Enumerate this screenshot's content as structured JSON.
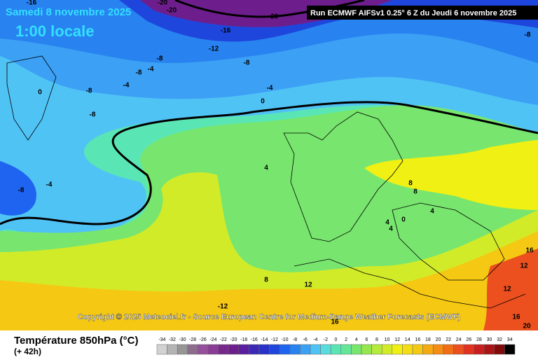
{
  "header": {
    "date": "Samedi 8 novembre 2025",
    "time": "1:00 locale",
    "run": "Run ECMWF AIFSv1 0.25° 6 Z du Jeudi 6 novembre 2025"
  },
  "copyright": "Copyright © 2025 Meteociel.fr - Source European Centre for Medium-Range Weather Forecasts (ECMWF)",
  "footer": {
    "title": "Température 850hPa (°C)",
    "lead": "(+ 42h)"
  },
  "contour_labels": [
    -16,
    -20,
    -20,
    -20,
    -16,
    -12,
    -8,
    -4,
    -8,
    -8,
    -8,
    -4,
    -4,
    0,
    -8,
    0,
    -8,
    -4,
    -8,
    4,
    8,
    8,
    4,
    4,
    4,
    0,
    16,
    12,
    8,
    12,
    12,
    -12,
    16,
    16,
    20
  ],
  "legend": {
    "ticks": [
      -34,
      -32,
      -30,
      -28,
      -26,
      -24,
      -22,
      -20,
      -18,
      -16,
      -14,
      -12,
      -10,
      -8,
      -6,
      -4,
      -2,
      0,
      2,
      4,
      6,
      8,
      10,
      12,
      14,
      16,
      18,
      20,
      22,
      24,
      26,
      28,
      30,
      32,
      34
    ],
    "colors": [
      "#d2d2d2",
      "#b4b4b4",
      "#969696",
      "#8c6e8c",
      "#96509b",
      "#8c3c96",
      "#78288c",
      "#6e1e8c",
      "#5a1ea0",
      "#3c28b4",
      "#2832c8",
      "#1e46dc",
      "#1e64f0",
      "#2882f0",
      "#3ca0f5",
      "#50c3f5",
      "#5adcdc",
      "#5ae6b4",
      "#64e696",
      "#78e66e",
      "#96e650",
      "#b4eb3c",
      "#d2eb28",
      "#f0f014",
      "#f5dc14",
      "#f5c814",
      "#f5aa14",
      "#f58c14",
      "#f06e14",
      "#eb501e",
      "#e1321e",
      "#c81e1e",
      "#aa1414",
      "#820a0a",
      "#000000"
    ]
  }
}
